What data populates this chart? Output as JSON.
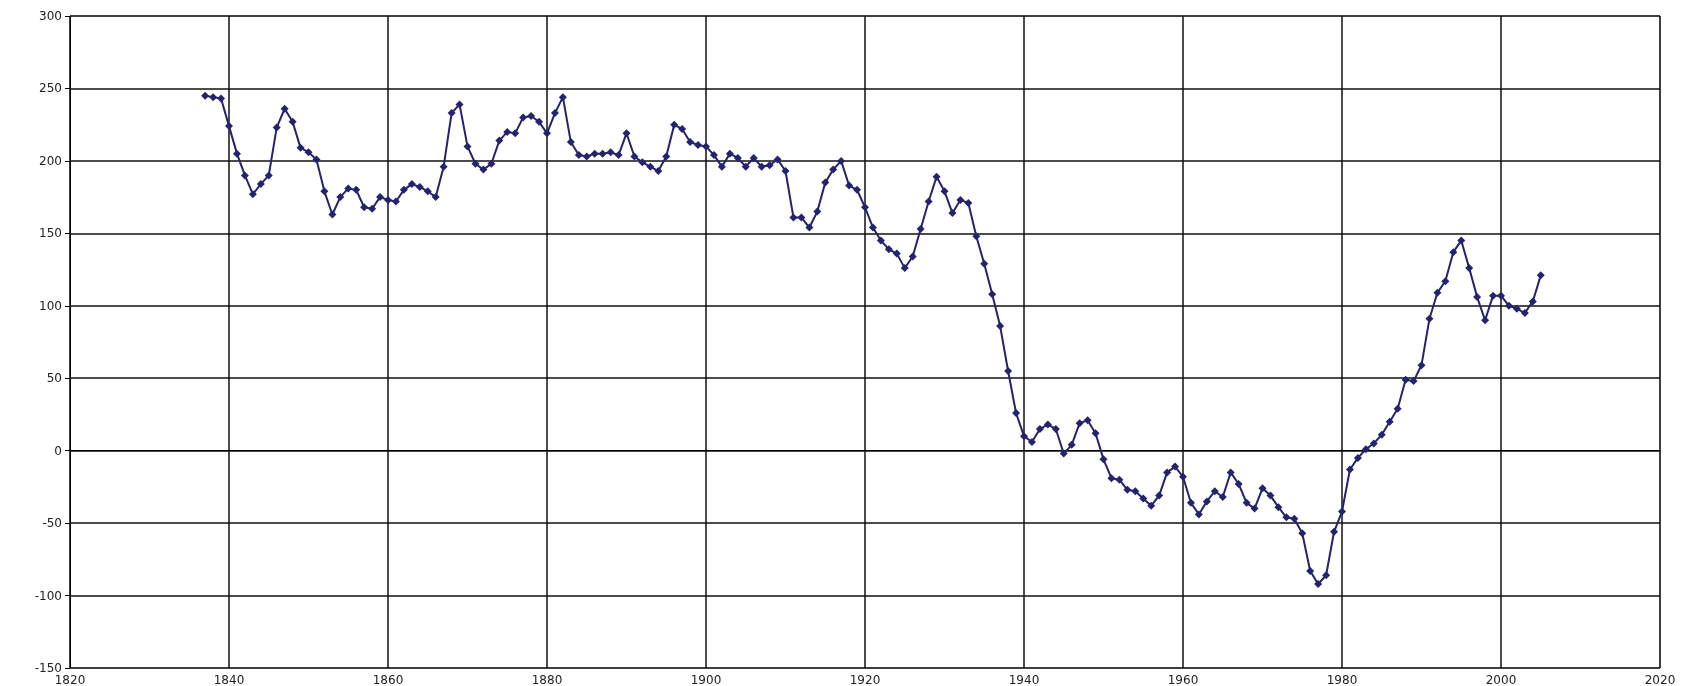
{
  "chart_data": {
    "type": "line",
    "xlim": [
      1820,
      2020
    ],
    "xticks": [
      1820,
      1840,
      1860,
      1880,
      1900,
      1920,
      1940,
      1960,
      1980,
      2000,
      2020
    ],
    "ylim": [
      -150,
      300
    ],
    "yticks": [
      -150,
      -100,
      -50,
      0,
      50,
      100,
      150,
      200,
      250,
      300
    ],
    "grid": true,
    "marker": "diamond",
    "line_style": "solid",
    "x": [
      1837,
      1838,
      1839,
      1840,
      1841,
      1842,
      1843,
      1844,
      1845,
      1846,
      1847,
      1848,
      1849,
      1850,
      1851,
      1852,
      1853,
      1854,
      1855,
      1856,
      1857,
      1858,
      1859,
      1860,
      1861,
      1862,
      1863,
      1864,
      1865,
      1866,
      1867,
      1868,
      1869,
      1870,
      1871,
      1872,
      1873,
      1874,
      1875,
      1876,
      1877,
      1878,
      1879,
      1880,
      1881,
      1882,
      1883,
      1884,
      1885,
      1886,
      1887,
      1888,
      1889,
      1890,
      1891,
      1892,
      1893,
      1894,
      1895,
      1896,
      1897,
      1898,
      1899,
      1900,
      1901,
      1902,
      1903,
      1904,
      1905,
      1906,
      1907,
      1908,
      1909,
      1910,
      1911,
      1912,
      1913,
      1914,
      1915,
      1916,
      1917,
      1918,
      1919,
      1920,
      1921,
      1922,
      1923,
      1924,
      1925,
      1926,
      1927,
      1928,
      1929,
      1930,
      1931,
      1932,
      1933,
      1934,
      1935,
      1936,
      1937,
      1938,
      1939,
      1940,
      1941,
      1942,
      1943,
      1944,
      1945,
      1946,
      1947,
      1948,
      1949,
      1950,
      1951,
      1952,
      1953,
      1954,
      1955,
      1956,
      1957,
      1958,
      1959,
      1960,
      1961,
      1962,
      1963,
      1964,
      1965,
      1966,
      1967,
      1968,
      1969,
      1970,
      1971,
      1972,
      1973,
      1974,
      1975,
      1976,
      1977,
      1978,
      1979,
      1980,
      1981,
      1982,
      1983,
      1984,
      1985,
      1986,
      1987,
      1988,
      1989,
      1990,
      1991,
      1992,
      1993,
      1994,
      1995,
      1996,
      1997,
      1998,
      1999,
      2000,
      2001,
      2002,
      2003,
      2004,
      2005
    ],
    "series": [
      {
        "color": "#25226e",
        "values": [
          245,
          244,
          243,
          224,
          205,
          190,
          177,
          184,
          190,
          223,
          236,
          227,
          209,
          206,
          201,
          179,
          163,
          175,
          181,
          180,
          168,
          167,
          175,
          173,
          172,
          180,
          184,
          182,
          179,
          175,
          196,
          233,
          239,
          210,
          198,
          194,
          198,
          214,
          220,
          219,
          230,
          231,
          227,
          219,
          233,
          244,
          213,
          204,
          203,
          205,
          205,
          206,
          204,
          219,
          203,
          199,
          196,
          193,
          203,
          225,
          222,
          213,
          211,
          210,
          204,
          196,
          205,
          202,
          196,
          202,
          196,
          197,
          201,
          193,
          161,
          161,
          154,
          165,
          185,
          194,
          200,
          183,
          180,
          168,
          154,
          145,
          139,
          136,
          126,
          134,
          153,
          172,
          189,
          179,
          164,
          173,
          171,
          148,
          129,
          108,
          86,
          55,
          26,
          10,
          6,
          15,
          18,
          15,
          -2,
          4,
          19,
          21,
          12,
          -6,
          -19,
          -20,
          -27,
          -28,
          -33,
          -38,
          -31,
          -15,
          -11,
          -18,
          -36,
          -44,
          -35,
          -28,
          -32,
          -15,
          -23,
          -36,
          -40,
          -26,
          -31,
          -39,
          -46,
          -47,
          -57,
          -83,
          -92,
          -86,
          -56,
          -42,
          -13,
          -5,
          1,
          5,
          11,
          20,
          29,
          49,
          48,
          59,
          91,
          109,
          117,
          137,
          145,
          126,
          106,
          90,
          107,
          107,
          100,
          98,
          95,
          103,
          121
        ]
      }
    ]
  }
}
